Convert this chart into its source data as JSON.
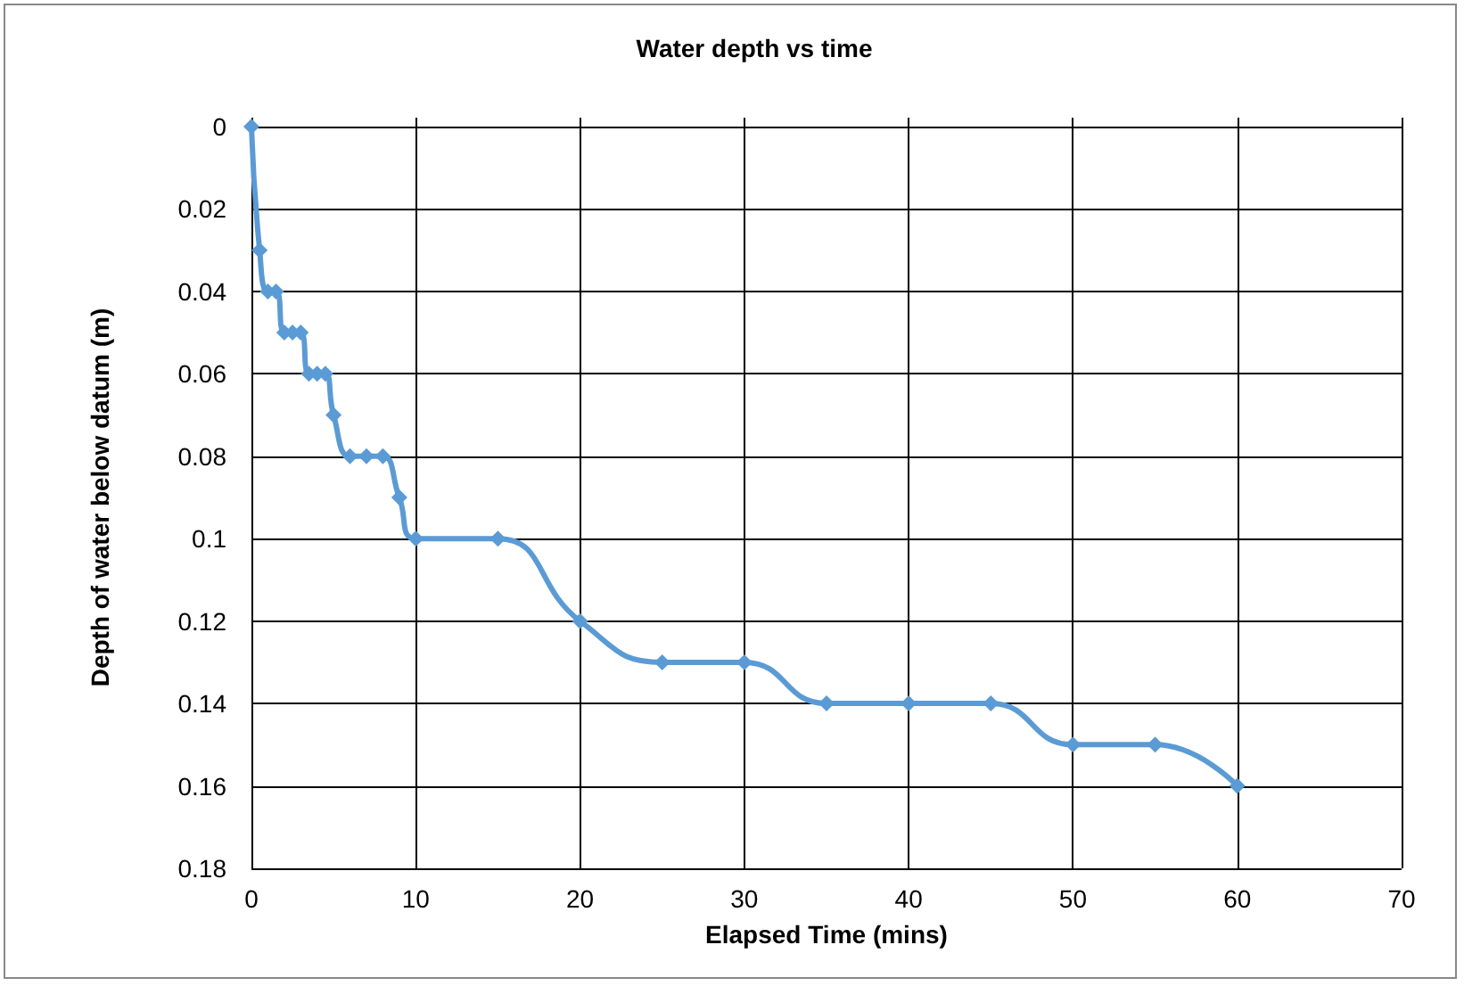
{
  "chart_data": {
    "type": "line",
    "title": "Water depth vs time",
    "xlabel": "Elapsed Time (mins)",
    "ylabel": "Depth of water below datum (m)",
    "x": [
      0,
      0.5,
      1,
      1.5,
      2,
      2.5,
      3,
      3.5,
      4,
      4.5,
      5,
      6,
      7,
      8,
      9,
      10,
      15,
      20,
      25,
      30,
      35,
      40,
      45,
      50,
      55,
      60
    ],
    "series": [
      {
        "color": "#5b9bd5",
        "values": [
          0,
          0.03,
          0.04,
          0.04,
          0.05,
          0.05,
          0.05,
          0.06,
          0.06,
          0.06,
          0.07,
          0.08,
          0.08,
          0.08,
          0.09,
          0.1,
          0.1,
          0.12,
          0.13,
          0.13,
          0.14,
          0.14,
          0.14,
          0.15,
          0.15,
          0.16
        ]
      }
    ],
    "xlim": [
      0,
      70
    ],
    "xticks": [
      0,
      10,
      20,
      30,
      40,
      50,
      60,
      70
    ],
    "ylim": [
      0.18,
      0
    ],
    "yticks": [
      0,
      0.02,
      0.04,
      0.06,
      0.08,
      0.1,
      0.12,
      0.14,
      0.16,
      0.18
    ],
    "grid": true,
    "marker": "diamond",
    "line_style": "solid"
  }
}
